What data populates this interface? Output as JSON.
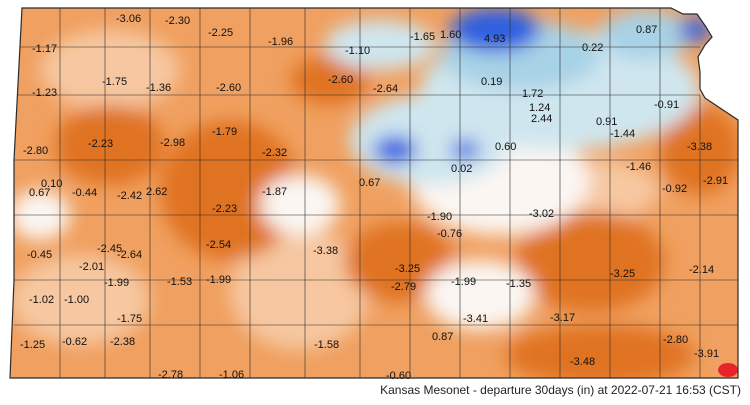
{
  "caption": "Kansas Mesonet - departure 30days (in) at 2022-07-21 16:53 (CST)",
  "colors": {
    "dry_strong": "#e07320",
    "dry_mid": "#f0a060",
    "dry_light": "#f6c7a0",
    "near_normal": "#fbf6f2",
    "wet_light": "#cfe6ef",
    "wet_mid": "#a8d2e6",
    "wet_strong": "#2f5fe0",
    "extreme_dry": "#e8232a",
    "county_lines": "#2a2a2a"
  },
  "stations": [
    {
      "id": "s01",
      "value": "-3.06"
    },
    {
      "id": "s02",
      "value": "-2.30"
    },
    {
      "id": "s03",
      "value": "-1.17"
    },
    {
      "id": "s04",
      "value": "-2.25"
    },
    {
      "id": "s05",
      "value": "-1.96"
    },
    {
      "id": "s06",
      "value": "-1.10"
    },
    {
      "id": "s07",
      "value": "-1.65"
    },
    {
      "id": "s08",
      "value": "1.60"
    },
    {
      "id": "s09",
      "value": "4.93"
    },
    {
      "id": "s10",
      "value": "0.22"
    },
    {
      "id": "s11",
      "value": "0.87"
    },
    {
      "id": "s12",
      "value": "-1.75"
    },
    {
      "id": "s13",
      "value": "-1.36"
    },
    {
      "id": "s14",
      "value": "-2.60"
    },
    {
      "id": "s15",
      "value": "-2.60"
    },
    {
      "id": "s16",
      "value": "-2.64"
    },
    {
      "id": "s17",
      "value": "0.19"
    },
    {
      "id": "s18",
      "value": "1.72"
    },
    {
      "id": "s19",
      "value": "-1.23"
    },
    {
      "id": "s20",
      "value": "1.24"
    },
    {
      "id": "s21",
      "value": "2.44"
    },
    {
      "id": "s22",
      "value": "-0.91"
    },
    {
      "id": "s23",
      "value": "0.91"
    },
    {
      "id": "s24",
      "value": "-1.79"
    },
    {
      "id": "s25",
      "value": "-1.44"
    },
    {
      "id": "s26",
      "value": "-2.80"
    },
    {
      "id": "s27",
      "value": "-2.23"
    },
    {
      "id": "s28",
      "value": "-2.98"
    },
    {
      "id": "s29",
      "value": "-2.32"
    },
    {
      "id": "s30",
      "value": "0.60"
    },
    {
      "id": "s31",
      "value": "-3.38"
    },
    {
      "id": "s32",
      "value": "0.02"
    },
    {
      "id": "s33",
      "value": "-1.46"
    },
    {
      "id": "s34",
      "value": "-2.91"
    },
    {
      "id": "s35",
      "value": "0.10"
    },
    {
      "id": "s36",
      "value": "0.67"
    },
    {
      "id": "s37",
      "value": "-0.44"
    },
    {
      "id": "s38",
      "value": "-2.42"
    },
    {
      "id": "s39",
      "value": "2.62"
    },
    {
      "id": "s40",
      "value": "-1.87"
    },
    {
      "id": "s41",
      "value": "0.67"
    },
    {
      "id": "s42",
      "value": "-0.92"
    },
    {
      "id": "s43",
      "value": "-2.23"
    },
    {
      "id": "s44",
      "value": "-1.90"
    },
    {
      "id": "s45",
      "value": "-3.02"
    },
    {
      "id": "s46",
      "value": "-0.76"
    },
    {
      "id": "s47",
      "value": "-2.45"
    },
    {
      "id": "s48",
      "value": "-2.54"
    },
    {
      "id": "s49",
      "value": "-0.45"
    },
    {
      "id": "s50",
      "value": "-2.64"
    },
    {
      "id": "s51",
      "value": "-3.38"
    },
    {
      "id": "s52",
      "value": "-2.01"
    },
    {
      "id": "s53",
      "value": "-3.25"
    },
    {
      "id": "s54",
      "value": "-3.25"
    },
    {
      "id": "s55",
      "value": "-2.14"
    },
    {
      "id": "s56",
      "value": "-1.99"
    },
    {
      "id": "s57",
      "value": "-1.53"
    },
    {
      "id": "s58",
      "value": "-1.99"
    },
    {
      "id": "s59",
      "value": "-2.79"
    },
    {
      "id": "s60",
      "value": "-1.99"
    },
    {
      "id": "s61",
      "value": "-1.35"
    },
    {
      "id": "s62",
      "value": "-1.02"
    },
    {
      "id": "s63",
      "value": "-1.00"
    },
    {
      "id": "s64",
      "value": "-1.75"
    },
    {
      "id": "s65",
      "value": "-3.41"
    },
    {
      "id": "s66",
      "value": "-3.17"
    },
    {
      "id": "s67",
      "value": "-1.25"
    },
    {
      "id": "s68",
      "value": "-0.62"
    },
    {
      "id": "s69",
      "value": "-2.38"
    },
    {
      "id": "s70",
      "value": "-1.58"
    },
    {
      "id": "s71",
      "value": "0.87"
    },
    {
      "id": "s72",
      "value": "-2.80"
    },
    {
      "id": "s73",
      "value": "-3.48"
    },
    {
      "id": "s74",
      "value": "-3.91"
    },
    {
      "id": "s75",
      "value": "-2.78"
    },
    {
      "id": "s76",
      "value": "-1.06"
    },
    {
      "id": "s77",
      "value": "-0.60"
    }
  ]
}
